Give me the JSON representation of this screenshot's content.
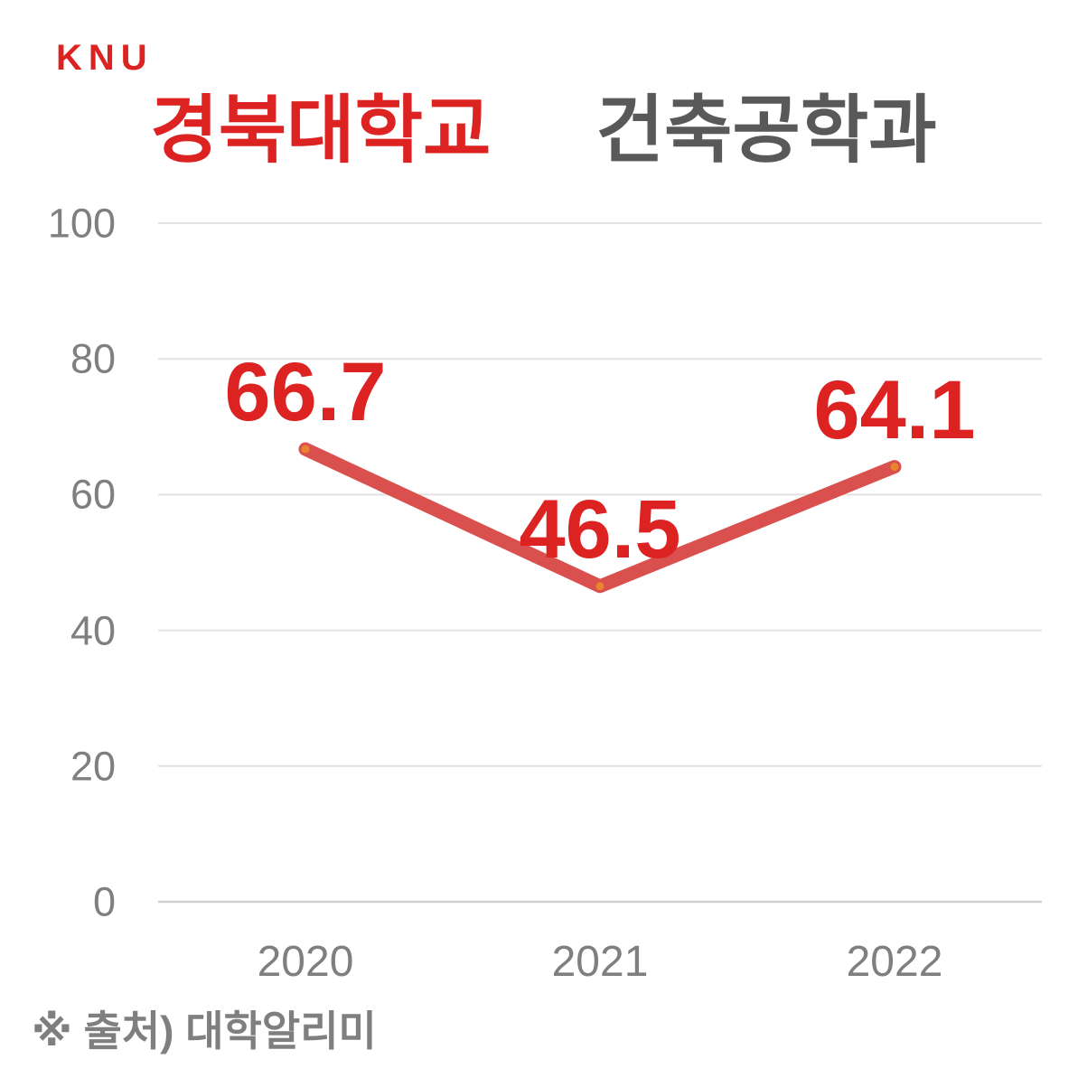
{
  "logo": {
    "text": "KNU"
  },
  "header": {
    "title_university": "경북대학교",
    "title_department": "건축공학과"
  },
  "footer": {
    "source_note": "※ 출처) 대학알리미"
  },
  "colors": {
    "brand_red": "#dd2222",
    "title_gray": "#595959",
    "axis_gray": "#7f7f7f",
    "gridline": "#e2e2e2",
    "gridline_zero": "#cfcfcf",
    "line": "#d9504e",
    "marker": "#e8832e"
  },
  "chart_data": {
    "type": "line",
    "title": "경북대학교 건축공학과",
    "categories": [
      "2020",
      "2021",
      "2022"
    ],
    "series": [
      {
        "name": "경북대학교 건축공학과",
        "values": [
          66.7,
          46.5,
          64.1
        ]
      }
    ],
    "data_labels": [
      "66.7",
      "46.5",
      "64.1"
    ],
    "yticks": [
      0,
      20,
      40,
      60,
      80,
      100
    ],
    "ylim": [
      0,
      100
    ],
    "grid": true,
    "legend": "none",
    "xlabel": "",
    "ylabel": ""
  }
}
